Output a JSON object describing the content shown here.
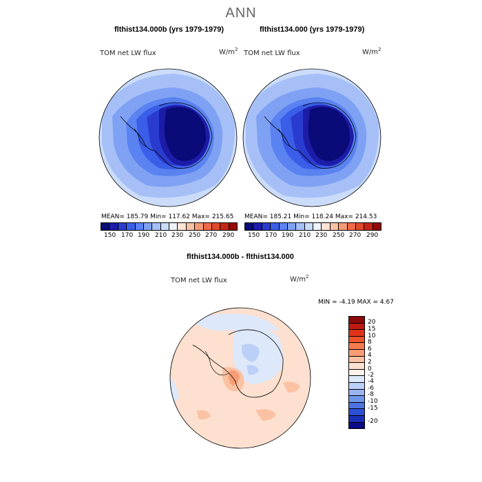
{
  "title": "ANN",
  "panels": [
    {
      "title": "flthist134.000b (yrs 1979-1979)",
      "variable": "TOM net LW flux",
      "units_base": "W/m",
      "units_exp": "2",
      "stats": "MEAN= 185.79   Min= 117.62   Max= 215.65"
    },
    {
      "title": "flthist134.000 (yrs 1979-1979)",
      "variable": "TOM net LW flux",
      "units_base": "W/m",
      "units_exp": "2",
      "stats": "MEAN= 185.21   Min= 118.24   Max= 214.53"
    }
  ],
  "abs_colorbar": {
    "colors": [
      "#0a0a78",
      "#1c1ca8",
      "#2a3ccf",
      "#3a5ee8",
      "#5a82f0",
      "#7fa1f4",
      "#a6c0f7",
      "#cbdcfa",
      "#eef3fd",
      "#fde4d4",
      "#f9c2a5",
      "#f59a76",
      "#ee6b48",
      "#e04a2c",
      "#c32616",
      "#930a0a"
    ],
    "labels": [
      "150",
      "170",
      "190",
      "210",
      "230",
      "250",
      "270",
      "290"
    ]
  },
  "diff": {
    "title": "flthist134.000b - flthist134.000",
    "variable": "TOM net LW flux",
    "units_base": "W/m",
    "units_exp": "2",
    "stats": "MIN =   -4.19 MAX =    4.67",
    "colors": [
      "#8c0a0a",
      "#c01a10",
      "#e03418",
      "#f0542a",
      "#f57a4e",
      "#f89c74",
      "#fbc1a3",
      "#fde0cf",
      "#fdf3ea",
      "#dde8fb",
      "#bcd0f7",
      "#98b5f2",
      "#7096ec",
      "#4e74e2",
      "#2f4fd6",
      "#1a2fb8",
      "#0b0b86"
    ],
    "labels": [
      "20",
      "15",
      "10",
      "8",
      "6",
      "4",
      "2",
      "0",
      "-2",
      "-4",
      "-6",
      "-8",
      "-10",
      "-15",
      "-20"
    ]
  }
}
